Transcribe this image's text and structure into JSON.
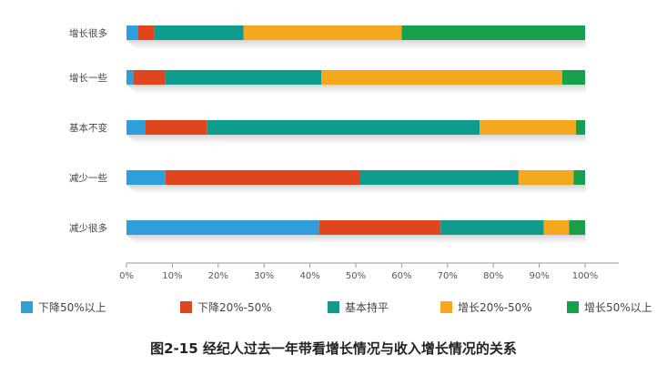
{
  "chart_data": {
    "type": "bar",
    "orientation": "horizontal",
    "stacked": true,
    "title": "图2-15 经纪人过去一年带看增长情况与收入增长情况的关系",
    "categories": [
      "增长很多",
      "增长一些",
      "基本不变",
      "减少一些",
      "减少很多"
    ],
    "x_ticks": [
      "0%",
      "10%",
      "20%",
      "30%",
      "40%",
      "50%",
      "60%",
      "70%",
      "80%",
      "90%",
      "100%"
    ],
    "xlim": [
      0,
      100
    ],
    "grid": false,
    "legend_position": "bottom",
    "series": [
      {
        "name": "下降50%以上",
        "color": "#2e9fdc",
        "values": [
          2.5,
          1.5,
          4.0,
          8.5,
          42.0
        ]
      },
      {
        "name": "下降20%-50%",
        "color": "#e0461e",
        "values": [
          3.5,
          7.0,
          13.5,
          42.5,
          26.5
        ]
      },
      {
        "name": "基本持平",
        "color": "#0f9c8e",
        "values": [
          19.5,
          34.0,
          59.5,
          34.5,
          22.5
        ]
      },
      {
        "name": "增长20%-50%",
        "color": "#f5a81d",
        "values": [
          34.5,
          52.5,
          21.0,
          12.0,
          5.5
        ]
      },
      {
        "name": "增长50%以上",
        "color": "#16a04a",
        "values": [
          40.0,
          5.0,
          2.0,
          2.5,
          3.5
        ]
      }
    ]
  }
}
